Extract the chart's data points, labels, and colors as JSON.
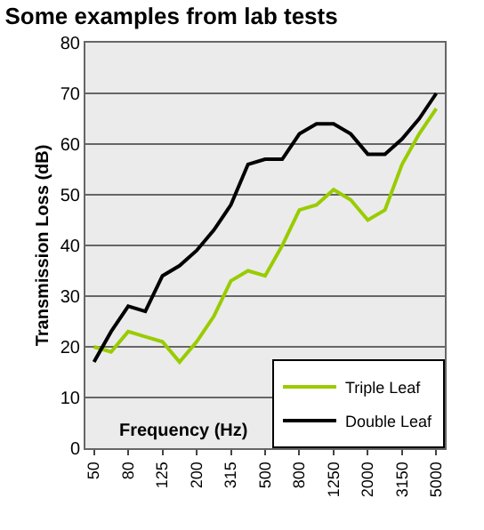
{
  "chart_data": {
    "type": "line",
    "title": "Some examples from lab tests",
    "xlabel": "Frequency (Hz)",
    "ylabel": "Transmission Loss (dB)",
    "categories": [
      "50",
      null,
      "80",
      null,
      "125",
      null,
      "200",
      null,
      "315",
      null,
      "500",
      null,
      "800",
      null,
      "1250",
      null,
      "2000",
      null,
      "3150",
      null,
      "5000"
    ],
    "series": [
      {
        "name": "Triple Leaf",
        "color": "#99cc00",
        "values": [
          20,
          19,
          23,
          22,
          21,
          17,
          21,
          26,
          33,
          35,
          34,
          40,
          47,
          48,
          51,
          49,
          45,
          47,
          56,
          62,
          67
        ]
      },
      {
        "name": "Double Leaf",
        "color": "#000000",
        "values": [
          17,
          23,
          28,
          27,
          34,
          36,
          39,
          43,
          48,
          56,
          57,
          57,
          62,
          64,
          64,
          62,
          58,
          58,
          61,
          65,
          70
        ]
      }
    ],
    "ylim": [
      0,
      80
    ],
    "yticks": [
      0,
      10,
      20,
      30,
      40,
      50,
      60,
      70,
      80
    ],
    "grid": "y",
    "legend": "bottom right",
    "marker": "none",
    "line_style": "solid"
  }
}
